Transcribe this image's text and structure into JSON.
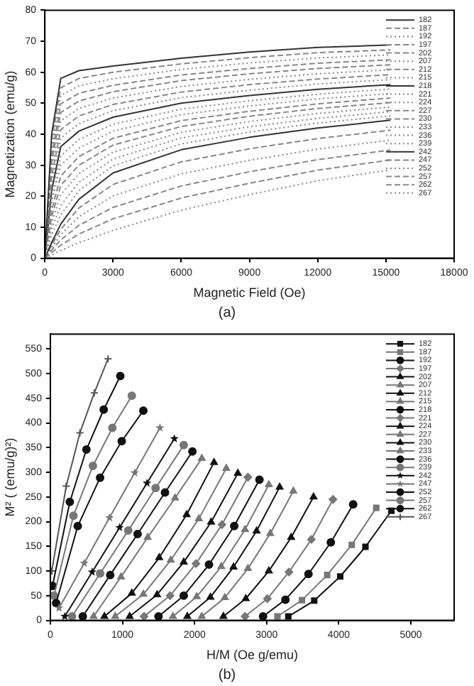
{
  "chart_data": [
    {
      "type": "line",
      "title": "(a)",
      "xlabel": "Magnetic Field (Oe)",
      "ylabel": "Magnetization (emu/g)",
      "x": [
        0,
        300,
        700,
        1500,
        3000,
        6000,
        9000,
        12000,
        15200
      ],
      "xlim": [
        0,
        18000
      ],
      "xticks": [
        0,
        3000,
        6000,
        9000,
        12000,
        15000,
        18000
      ],
      "ylim": [
        0,
        80
      ],
      "yticks": [
        0,
        10,
        20,
        30,
        40,
        50,
        60,
        70,
        80
      ],
      "grid": false,
      "legend": "top right",
      "marker": "none",
      "series": [
        {
          "name": "182",
          "color": "#333333",
          "line_style": "solid",
          "values": [
            0,
            40,
            58,
            60.5,
            62,
            64.5,
            66.5,
            68,
            68.8
          ]
        },
        {
          "name": "187",
          "color": "#888888",
          "line_style": "dashed",
          "values": [
            0,
            38,
            55,
            58,
            60,
            62.7,
            64.7,
            66.3,
            67.2
          ]
        },
        {
          "name": "192",
          "color": "#888888",
          "line_style": "dotted",
          "values": [
            0,
            35.5,
            52.5,
            55.6,
            57.9,
            60.9,
            63,
            64.6,
            65.6
          ]
        },
        {
          "name": "197",
          "color": "#888888",
          "line_style": "dashed",
          "values": [
            0,
            33,
            49.8,
            53.2,
            55.8,
            59.1,
            61.2,
            62.9,
            64
          ]
        },
        {
          "name": "202",
          "color": "#888888",
          "line_style": "dashed",
          "values": [
            0,
            31,
            47,
            50.7,
            53.7,
            57.3,
            59.5,
            61.2,
            62.4
          ]
        },
        {
          "name": "207",
          "color": "#888888",
          "line_style": "dotted",
          "values": [
            0,
            29,
            44.3,
            48.3,
            51.7,
            55.4,
            57.7,
            59.5,
            60.8
          ]
        },
        {
          "name": "212",
          "color": "#888888",
          "line_style": "dashed",
          "values": [
            0,
            26.5,
            41.5,
            45.9,
            49.6,
            53.6,
            56,
            57.8,
            59.2
          ]
        },
        {
          "name": "215",
          "color": "#888888",
          "line_style": "dotted",
          "values": [
            0,
            24,
            38.8,
            43.4,
            47.6,
            51.8,
            54.2,
            56.2,
            57.6
          ]
        },
        {
          "name": "218",
          "color": "#333333",
          "line_style": "solid",
          "values": [
            0,
            22,
            36,
            41,
            45.5,
            50,
            52.5,
            54.5,
            56
          ]
        },
        {
          "name": "221",
          "color": "#888888",
          "line_style": "dotted",
          "values": [
            0,
            20,
            33,
            38.3,
            43.2,
            48.1,
            50.8,
            52.9,
            54.6
          ]
        },
        {
          "name": "224",
          "color": "#888888",
          "line_style": "dotted",
          "values": [
            0,
            18,
            30,
            35.5,
            41,
            46.3,
            49.1,
            51.4,
            53.1
          ]
        },
        {
          "name": "227",
          "color": "#888888",
          "line_style": "dashed",
          "values": [
            0,
            15.5,
            26.5,
            32.8,
            38.7,
            44.4,
            47.4,
            49.8,
            51.7
          ]
        },
        {
          "name": "230",
          "color": "#888888",
          "line_style": "dashed",
          "values": [
            0,
            13.5,
            23.5,
            30,
            36.5,
            42.5,
            45.8,
            48.3,
            50.2
          ]
        },
        {
          "name": "233",
          "color": "#888888",
          "line_style": "dotted",
          "values": [
            0,
            11.5,
            20.5,
            27.3,
            34.2,
            40.6,
            44.1,
            46.7,
            48.8
          ]
        },
        {
          "name": "236",
          "color": "#888888",
          "line_style": "dotted",
          "values": [
            0,
            9.5,
            17,
            24.5,
            32,
            38.8,
            42.4,
            45.1,
            47.3
          ]
        },
        {
          "name": "239",
          "color": "#888888",
          "line_style": "dotted",
          "values": [
            0,
            7.5,
            14,
            21.8,
            29.8,
            36.9,
            40.7,
            43.6,
            45.9
          ]
        },
        {
          "name": "242",
          "color": "#333333",
          "line_style": "solid",
          "values": [
            0,
            5,
            11,
            19,
            27.5,
            35,
            39,
            42,
            44.5
          ]
        },
        {
          "name": "247",
          "color": "#888888",
          "line_style": "dashed",
          "values": [
            0,
            4.2,
            9.3,
            16.2,
            23.8,
            31.1,
            35.3,
            38.6,
            41.3
          ]
        },
        {
          "name": "252",
          "color": "#888888",
          "line_style": "dotted",
          "values": [
            0,
            3.4,
            7.6,
            13.4,
            20.1,
            27.2,
            31.6,
            35.2,
            38.1
          ]
        },
        {
          "name": "257",
          "color": "#888888",
          "line_style": "dashed",
          "values": [
            0,
            2.6,
            5.9,
            10.6,
            16.4,
            23.3,
            27.9,
            31.8,
            34.9
          ]
        },
        {
          "name": "262",
          "color": "#888888",
          "line_style": "dashed",
          "values": [
            0,
            1.8,
            4.2,
            7.8,
            12.7,
            19.4,
            24.2,
            28.4,
            31.7
          ]
        },
        {
          "name": "267",
          "color": "#888888",
          "line_style": "dotted",
          "values": [
            0,
            1,
            2.5,
            5,
            9,
            15.5,
            20.5,
            25,
            28.5
          ]
        }
      ]
    },
    {
      "type": "line",
      "title": "(b)",
      "xlabel": "H/M (Oe g/emu)",
      "ylabel": "M² ( (emu/g)²)",
      "xlim": [
        0,
        5600
      ],
      "xticks": [
        0,
        1000,
        2000,
        3000,
        4000,
        5000
      ],
      "ylim": [
        0,
        580
      ],
      "yticks": [
        0,
        50,
        100,
        150,
        200,
        250,
        300,
        350,
        400,
        450,
        500,
        550
      ],
      "grid": false,
      "legend": "top right",
      "line_style": "solid",
      "series": [
        {
          "name": "182",
          "color": "#111111",
          "marker": "square",
          "x": [
            3300,
            3660,
            4020,
            4370,
            4730
          ],
          "values": [
            8,
            40,
            89,
            149,
            222
          ]
        },
        {
          "name": "187",
          "color": "#777777",
          "marker": "square",
          "x": [
            3150,
            3490,
            3840,
            4180,
            4520
          ],
          "values": [
            8,
            41,
            92,
            153,
            228
          ]
        },
        {
          "name": "192",
          "color": "#111111",
          "marker": "circle",
          "x": [
            2950,
            3260,
            3580,
            3890,
            4200
          ],
          "values": [
            8,
            42,
            94,
            158,
            235
          ]
        },
        {
          "name": "197",
          "color": "#777777",
          "marker": "diamond",
          "x": [
            2700,
            3010,
            3310,
            3620,
            3920
          ],
          "values": [
            8,
            44,
            98,
            164,
            245
          ]
        },
        {
          "name": "202",
          "color": "#111111",
          "marker": "triangle",
          "x": [
            2400,
            2710,
            3030,
            3340,
            3650
          ],
          "values": [
            8,
            44,
            100,
            168,
            250
          ]
        },
        {
          "name": "207",
          "color": "#777777",
          "marker": "triangle",
          "x": [
            2100,
            2420,
            2740,
            3050,
            3370
          ],
          "values": [
            8,
            46,
            105,
            176,
            262
          ]
        },
        {
          "name": "212",
          "color": "#111111",
          "marker": "triangle",
          "x": [
            1900,
            2220,
            2540,
            2860,
            3180
          ],
          "values": [
            8,
            47,
            108,
            181,
            270
          ]
        },
        {
          "name": "215",
          "color": "#777777",
          "marker": "triangle",
          "x": [
            1700,
            2030,
            2370,
            2700,
            3030
          ],
          "values": [
            8,
            48,
            109,
            184,
            275
          ]
        },
        {
          "name": "218",
          "color": "#111111",
          "marker": "circle",
          "x": [
            1500,
            1850,
            2200,
            2550,
            2900
          ],
          "values": [
            8,
            50,
            113,
            191,
            285
          ]
        },
        {
          "name": "221",
          "color": "#777777",
          "marker": "diamond",
          "x": [
            1300,
            1660,
            2020,
            2380,
            2740
          ],
          "values": [
            8,
            50,
            115,
            194,
            290
          ]
        },
        {
          "name": "224",
          "color": "#111111",
          "marker": "triangle",
          "x": [
            1100,
            1480,
            1850,
            2230,
            2600
          ],
          "values": [
            8,
            52,
            118,
            199,
            298
          ]
        },
        {
          "name": "227",
          "color": "#777777",
          "marker": "triangle",
          "x": [
            900,
            1290,
            1670,
            2060,
            2440
          ],
          "values": [
            8,
            53,
            122,
            206,
            308
          ]
        },
        {
          "name": "230",
          "color": "#111111",
          "marker": "triangle",
          "x": [
            750,
            1130,
            1510,
            1890,
            2270
          ],
          "values": [
            8,
            55,
            127,
            214,
            320
          ]
        },
        {
          "name": "233",
          "color": "#777777",
          "marker": "triangle",
          "x": [
            600,
            980,
            1350,
            1730,
            2100
          ],
          "values": [
            8,
            88,
            168,
            248,
            328
          ]
        },
        {
          "name": "236",
          "color": "#111111",
          "marker": "circle",
          "x": [
            450,
            830,
            1210,
            1590,
            1970
          ],
          "values": [
            8,
            92,
            175,
            259,
            342
          ]
        },
        {
          "name": "239",
          "color": "#777777",
          "marker": "circle",
          "x": [
            300,
            690,
            1080,
            1460,
            1850
          ],
          "values": [
            8,
            95,
            182,
            268,
            355
          ]
        },
        {
          "name": "242",
          "color": "#111111",
          "marker": "star",
          "x": [
            200,
            580,
            960,
            1340,
            1720
          ],
          "values": [
            8,
            98,
            188,
            278,
            368
          ]
        },
        {
          "name": "247",
          "color": "#777777",
          "marker": "star",
          "x": [
            120,
            470,
            820,
            1170,
            1520
          ],
          "values": [
            25,
            116,
            208,
            299,
            390
          ]
        },
        {
          "name": "252",
          "color": "#111111",
          "marker": "circle",
          "x": [
            80,
            380,
            690,
            990,
            1290
          ],
          "values": [
            35,
            191,
            289,
            363,
            425
          ]
        },
        {
          "name": "257",
          "color": "#777777",
          "marker": "circle",
          "x": [
            50,
            320,
            590,
            860,
            1130
          ],
          "values": [
            50,
            212,
            313,
            390,
            455
          ]
        },
        {
          "name": "262",
          "color": "#111111",
          "marker": "circle",
          "x": [
            30,
            270,
            500,
            740,
            970
          ],
          "values": [
            70,
            240,
            346,
            427,
            495
          ]
        },
        {
          "name": "267",
          "color": "#555555",
          "marker": "cross",
          "x": [
            20,
            220,
            410,
            610,
            800
          ],
          "values": [
            100,
            272,
            380,
            461,
            530
          ]
        }
      ]
    }
  ]
}
